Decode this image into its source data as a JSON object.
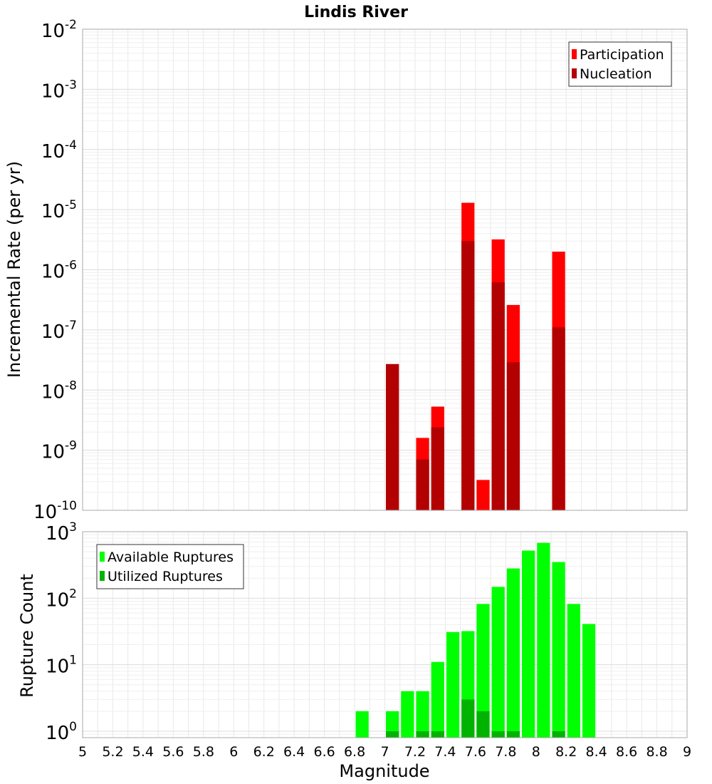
{
  "chart_data": [
    {
      "type": "bar",
      "title": "Lindis River",
      "ylabel": "Incremental Rate (per yr)",
      "xlabel": "",
      "y_scale": "log",
      "ylim": [
        1e-10,
        0.01
      ],
      "xlim": [
        5,
        9
      ],
      "ytick_exponents": [
        "-10",
        "-9",
        "-8",
        "-7",
        "-6",
        "-5",
        "-4",
        "-3",
        "-2"
      ],
      "ytick_base": "10",
      "grid": true,
      "legend_position": "top-right",
      "bar_width": 0.1,
      "series": [
        {
          "name": "Participation",
          "color": "#ff0000",
          "x": [
            7.05,
            7.25,
            7.35,
            7.55,
            7.65,
            7.75,
            7.85,
            8.15
          ],
          "values": [
            2.7e-08,
            1.6e-09,
            5.3e-09,
            1.3e-05,
            3.2e-10,
            3.2e-06,
            2.6e-07,
            2e-06
          ]
        },
        {
          "name": "Nucleation",
          "color": "#b30000",
          "x": [
            7.05,
            7.25,
            7.35,
            7.55,
            7.75,
            7.85,
            8.15
          ],
          "values": [
            2.7e-08,
            7e-10,
            2.4e-09,
            3e-06,
            6.2e-07,
            2.9e-08,
            1.1e-07
          ]
        }
      ]
    },
    {
      "type": "bar",
      "ylabel": "Rupture Count",
      "xlabel": "Magnitude",
      "y_scale": "log",
      "ylim": [
        0.8,
        1000
      ],
      "xlim": [
        5,
        9
      ],
      "ytick_exponents": [
        "0",
        "1",
        "2",
        "3"
      ],
      "ytick_base": "10",
      "xticks": [
        "5",
        "5.2",
        "5.4",
        "5.6",
        "5.8",
        "6",
        "6.2",
        "6.4",
        "6.6",
        "6.8",
        "7",
        "7.2",
        "7.4",
        "7.6",
        "7.8",
        "8",
        "8.2",
        "8.4",
        "8.6",
        "8.8",
        "9"
      ],
      "grid": true,
      "legend_position": "top-left",
      "bar_width": 0.1,
      "series": [
        {
          "name": "Available Ruptures",
          "color": "#00ff00",
          "x": [
            6.85,
            7.05,
            7.15,
            7.25,
            7.35,
            7.45,
            7.55,
            7.65,
            7.75,
            7.85,
            7.95,
            8.05,
            8.15,
            8.25,
            8.35
          ],
          "values": [
            2,
            2,
            4,
            4,
            11,
            31,
            32,
            82,
            148,
            280,
            520,
            680,
            350,
            82,
            41
          ]
        },
        {
          "name": "Utilized Ruptures",
          "color": "#00b300",
          "x": [
            7.05,
            7.25,
            7.35,
            7.55,
            7.65,
            7.75,
            7.85,
            8.15
          ],
          "values": [
            1,
            1,
            1,
            3,
            2,
            1,
            1,
            1
          ]
        }
      ]
    }
  ]
}
